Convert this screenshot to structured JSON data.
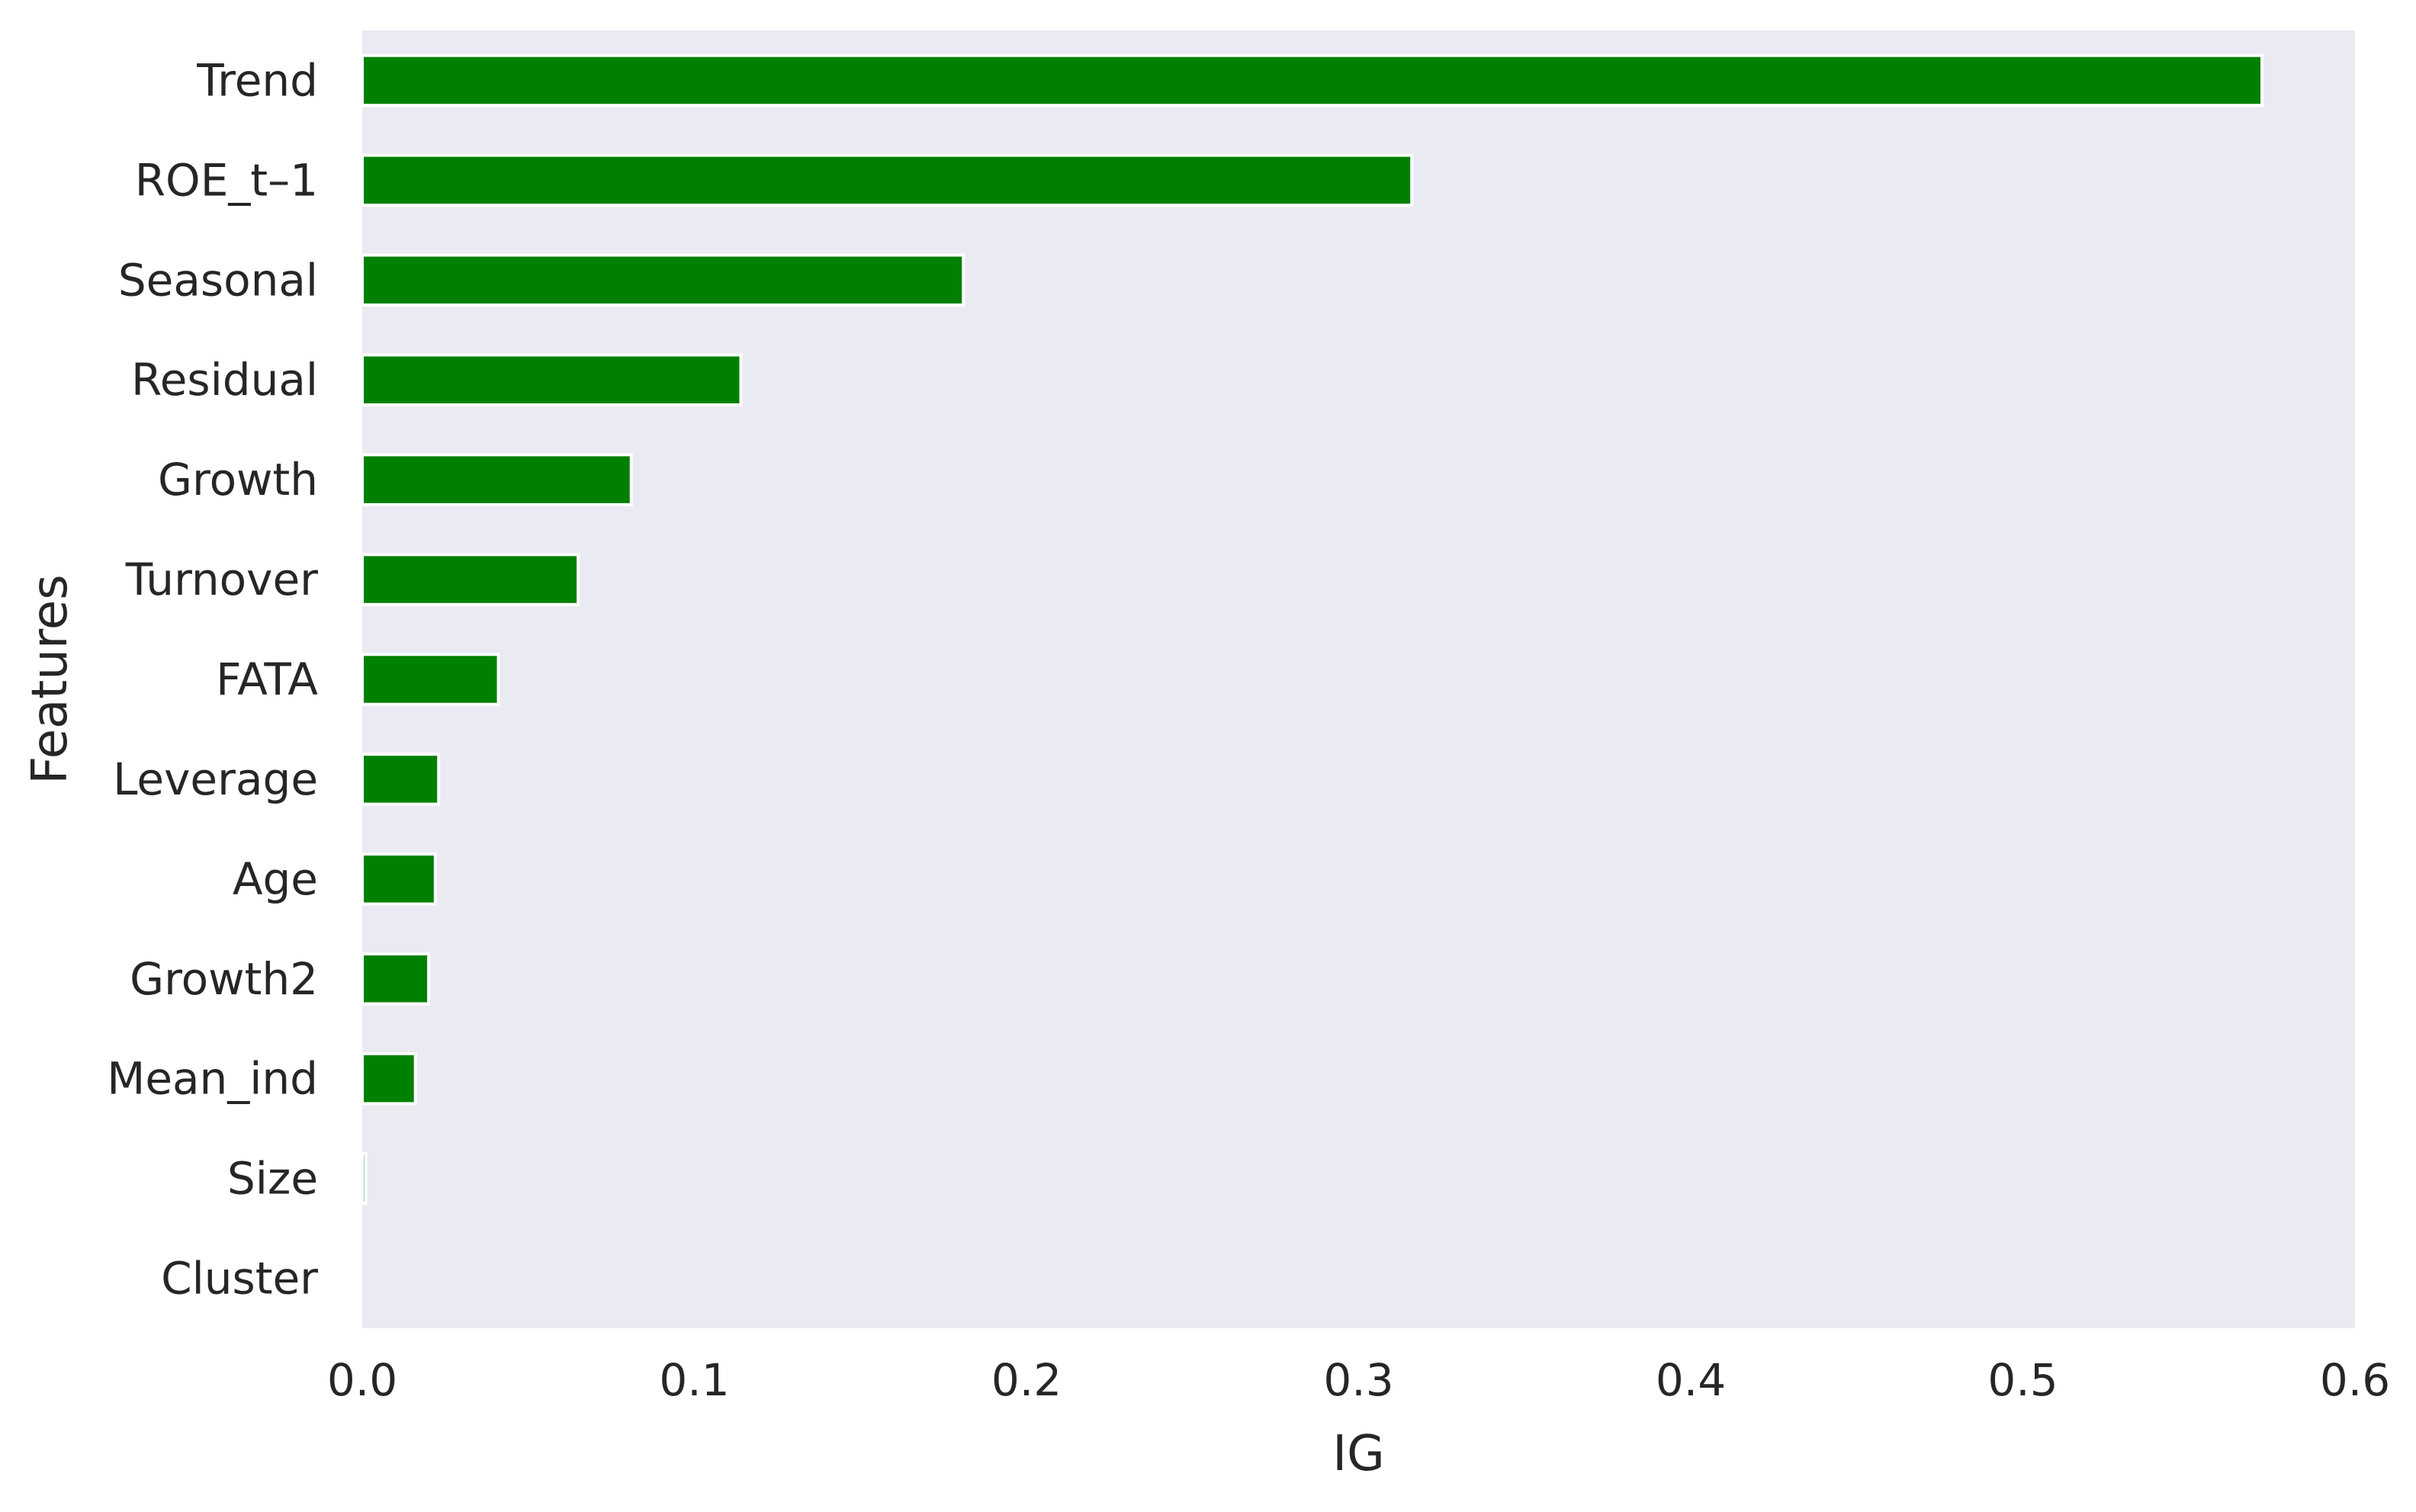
{
  "chart_data": {
    "type": "bar",
    "orientation": "horizontal",
    "categories": [
      "Trend",
      "ROE_t–1",
      "Seasonal",
      "Residual",
      "Growth",
      "Turnover",
      "FATA",
      "Leverage",
      "Age",
      "Growth2",
      "Mean_ind",
      "Size",
      "Cluster"
    ],
    "values": [
      0.572,
      0.316,
      0.181,
      0.114,
      0.081,
      0.065,
      0.041,
      0.023,
      0.022,
      0.02,
      0.016,
      0.001,
      0.0
    ],
    "xlabel": "IG",
    "ylabel": "Features",
    "xlim": [
      0,
      0.6
    ],
    "xticks": [
      "0.0",
      "0.1",
      "0.2",
      "0.3",
      "0.4",
      "0.5",
      "0.6"
    ],
    "grid": false,
    "legend": "none",
    "colors": {
      "bar": "#008000",
      "plot_background": "#EAEAF2",
      "bar_edge": "#ffffff",
      "text": "#262626"
    }
  }
}
